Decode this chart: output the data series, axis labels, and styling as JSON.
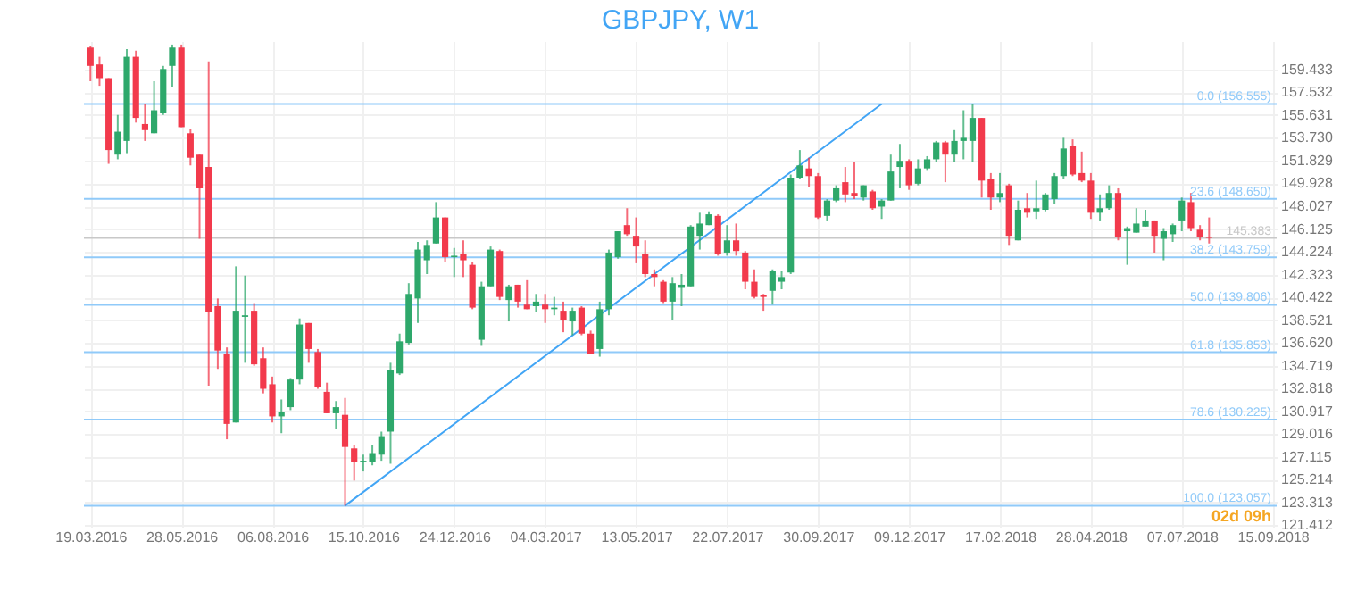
{
  "chart_data": {
    "type": "candlestick",
    "title": "GBPJPY, W1",
    "ylim": [
      121.3,
      161.8
    ],
    "yticks": [
      121.412,
      123.313,
      125.214,
      127.115,
      129.016,
      130.917,
      132.818,
      134.719,
      {
        "value": 136.62,
        "label": "136.620"
      },
      138.521,
      140.422,
      142.323,
      144.224,
      146.125,
      148.027,
      149.928,
      151.829,
      {
        "value": 153.73,
        "label": "153.730"
      },
      155.631,
      157.532,
      159.433
    ],
    "xlim": [
      "2016-03-14",
      "2018-09-18"
    ],
    "xticks": [
      {
        "value": "2016-03-19",
        "label": "19.03.2016"
      },
      {
        "value": "2016-05-28",
        "label": "28.05.2016"
      },
      {
        "value": "2016-08-06",
        "label": "06.08.2016"
      },
      {
        "value": "2016-10-15",
        "label": "15.10.2016"
      },
      {
        "value": "2016-12-24",
        "label": "24.12.2016"
      },
      {
        "value": "2017-03-04",
        "label": "04.03.2017"
      },
      {
        "value": "2017-05-13",
        "label": "13.05.2017"
      },
      {
        "value": "2017-07-22",
        "label": "22.07.2017"
      },
      {
        "value": "2017-09-30",
        "label": "30.09.2017"
      },
      {
        "value": "2017-12-09",
        "label": "09.12.2017"
      },
      {
        "value": "2018-02-17",
        "label": "17.02.2018"
      },
      {
        "value": "2018-04-28",
        "label": "28.04.2018"
      },
      {
        "value": "2018-07-07",
        "label": "07.07.2018"
      },
      {
        "value": "2018-09-15",
        "label": "15.09.2018"
      }
    ],
    "grid": true,
    "series": [
      {
        "type": "line",
        "color": "#42a5f5",
        "x": [
          "2016-10-01",
          "2017-11-18"
        ],
        "values": [
          123.057,
          156.555
        ]
      },
      {
        "color": "#2ea86b",
        "x": [
          "2016-04-09",
          "2016-04-16",
          "2016-05-07",
          "2016-05-14",
          "2016-05-21",
          "2016-07-09",
          "2016-07-16",
          "2016-08-13",
          "2016-08-20",
          "2016-08-27",
          "2016-09-24",
          "2016-10-15",
          "2016-10-22",
          "2016-10-29",
          "2016-11-05",
          "2016-11-12",
          "2016-11-19",
          "2016-11-26",
          "2016-12-03",
          "2016-12-10",
          "2016-12-24",
          "2017-01-14",
          "2017-01-21",
          "2017-02-04",
          "2017-02-25",
          "2017-03-11",
          "2017-03-25",
          "2017-04-15",
          "2017-04-22",
          "2017-04-29",
          "2017-06-10",
          "2017-06-17",
          "2017-06-24",
          "2017-07-01",
          "2017-07-08",
          "2017-07-22",
          "2017-08-26",
          "2017-09-02",
          "2017-09-09",
          "2017-09-16",
          "2017-10-07",
          "2017-10-14",
          "2017-11-04",
          "2017-11-18",
          "2017-11-25",
          "2017-12-02",
          "2017-12-16",
          "2017-12-23",
          "2017-12-30",
          "2018-01-13",
          "2018-01-20",
          "2018-01-27",
          "2018-02-17",
          "2018-03-03",
          "2018-03-17",
          "2018-03-24",
          "2018-03-31",
          "2018-04-07",
          "2018-05-05",
          "2018-05-12",
          "2018-05-26",
          "2018-06-02",
          "2018-06-09",
          "2018-06-23",
          "2018-06-30",
          "2018-07-07"
        ],
        "ohlc": [
          [
            152.33,
            155.64,
            151.94,
            154.24
          ],
          [
            153.47,
            161.13,
            152.45,
            160.49
          ],
          [
            154.11,
            158.45,
            154.11,
            156.03
          ],
          [
            155.77,
            159.73,
            155.64,
            159.47
          ],
          [
            159.73,
            161.51,
            157.94,
            161.26
          ],
          [
            129.99,
            143.01,
            129.99,
            139.31
          ],
          [
            138.8,
            142.24,
            134.97,
            138.93
          ],
          [
            130.5,
            131.91,
            129.1,
            130.89
          ],
          [
            131.27,
            133.7,
            131.02,
            133.57
          ],
          [
            133.57,
            138.67,
            133.18,
            138.16
          ],
          [
            130.76,
            131.78,
            129.48,
            131.27
          ],
          [
            126.68,
            127.31,
            125.91,
            126.8
          ],
          [
            126.68,
            128.08,
            126.42,
            127.44
          ],
          [
            127.31,
            129.23,
            126.8,
            128.85
          ],
          [
            129.23,
            134.97,
            126.55,
            134.33
          ],
          [
            134.08,
            137.4,
            133.95,
            136.76
          ],
          [
            136.63,
            141.61,
            136.5,
            140.71
          ],
          [
            140.33,
            145.05,
            138.29,
            144.41
          ],
          [
            143.52,
            145.18,
            142.37,
            144.8
          ],
          [
            144.92,
            148.37,
            144.92,
            147.09
          ],
          [
            143.78,
            144.54,
            142.12,
            143.9
          ],
          [
            136.89,
            141.73,
            136.38,
            141.35
          ],
          [
            141.35,
            144.67,
            141.35,
            144.41
          ],
          [
            140.2,
            141.48,
            138.42,
            141.35
          ],
          [
            139.69,
            140.71,
            139.18,
            140.07
          ],
          [
            139.44,
            140.46,
            138.93,
            139.57
          ],
          [
            138.42,
            139.57,
            137.27,
            139.31
          ],
          [
            136.12,
            140.07,
            135.48,
            139.44
          ],
          [
            139.44,
            144.41,
            138.93,
            144.16
          ],
          [
            143.78,
            145.94,
            143.65,
            145.94
          ],
          [
            140.07,
            142.12,
            138.54,
            141.61
          ],
          [
            141.22,
            142.37,
            139.69,
            141.48
          ],
          [
            141.35,
            146.45,
            141.35,
            146.33
          ],
          [
            145.56,
            147.48,
            144.41,
            146.58
          ],
          [
            146.45,
            147.6,
            146.45,
            147.35
          ],
          [
            144.16,
            146.45,
            143.9,
            145.18
          ],
          [
            140.97,
            142.76,
            139.82,
            142.63
          ],
          [
            141.73,
            142.63,
            141.1,
            142.12
          ],
          [
            142.5,
            150.67,
            142.37,
            150.41
          ],
          [
            150.41,
            152.71,
            150.28,
            151.43
          ],
          [
            147.22,
            148.62,
            146.84,
            148.5
          ],
          [
            148.5,
            149.77,
            148.37,
            149.52
          ],
          [
            148.75,
            149.77,
            148.5,
            149.77
          ],
          [
            147.99,
            148.62,
            146.97,
            148.5
          ],
          [
            148.5,
            152.33,
            148.5,
            150.92
          ],
          [
            151.3,
            153.22,
            149.52,
            151.81
          ],
          [
            149.9,
            151.94,
            149.77,
            151.18
          ],
          [
            151.18,
            152.2,
            151.05,
            151.94
          ],
          [
            151.94,
            153.47,
            151.69,
            153.35
          ],
          [
            152.33,
            154.37,
            151.69,
            153.47
          ],
          [
            153.47,
            156.03,
            151.94,
            153.73
          ],
          [
            153.47,
            156.54,
            151.69,
            155.39
          ],
          [
            148.75,
            150.79,
            148.37,
            149.13
          ],
          [
            145.18,
            148.5,
            145.18,
            147.73
          ],
          [
            147.6,
            150.16,
            146.97,
            147.86
          ],
          [
            147.73,
            149.13,
            147.6,
            149.01
          ],
          [
            148.62,
            150.79,
            148.24,
            150.54
          ],
          [
            150.54,
            153.73,
            150.28,
            152.84
          ],
          [
            147.48,
            149.01,
            146.84,
            147.86
          ],
          [
            147.86,
            149.77,
            147.73,
            149.13
          ],
          [
            145.94,
            146.33,
            143.14,
            146.2
          ],
          [
            145.82,
            147.86,
            145.82,
            146.58
          ],
          [
            146.33,
            147.73,
            146.33,
            146.84
          ],
          [
            145.31,
            146.2,
            143.52,
            145.94
          ],
          [
            145.69,
            146.58,
            145.05,
            146.45
          ],
          [
            146.84,
            148.75,
            145.94,
            148.5
          ]
        ]
      },
      {
        "color": "#f23a4c",
        "x": [
          "2016-03-19",
          "2016-03-26",
          "2016-04-02",
          "2016-04-23",
          "2016-04-30",
          "2016-05-28",
          "2016-06-04",
          "2016-06-11",
          "2016-06-18",
          "2016-06-25",
          "2016-07-02",
          "2016-07-23",
          "2016-07-30",
          "2016-08-06",
          "2016-09-03",
          "2016-09-10",
          "2016-09-17",
          "2016-10-01",
          "2016-10-08",
          "2016-12-17",
          "2016-12-31",
          "2017-01-07",
          "2017-01-28",
          "2017-02-11",
          "2017-02-18",
          "2017-03-04",
          "2017-03-18",
          "2017-04-01",
          "2017-04-08",
          "2017-05-06",
          "2017-05-13",
          "2017-05-20",
          "2017-05-27",
          "2017-06-03",
          "2017-07-15",
          "2017-07-29",
          "2017-08-05",
          "2017-08-12",
          "2017-08-19",
          "2017-09-23",
          "2017-09-30",
          "2017-10-21",
          "2017-10-28",
          "2017-11-11",
          "2017-12-09",
          "2018-01-06",
          "2018-02-03",
          "2018-02-10",
          "2018-02-24",
          "2018-03-10",
          "2018-04-14",
          "2018-04-21",
          "2018-04-28",
          "2018-05-19",
          "2018-06-16",
          "2018-07-14",
          "2018-07-21",
          "2018-07-28"
        ],
        "ohlc": [
          [
            161.26,
            161.38,
            158.45,
            159.73
          ],
          [
            159.85,
            160.49,
            158.07,
            158.71
          ],
          [
            158.71,
            158.71,
            151.56,
            152.71
          ],
          [
            160.49,
            161.0,
            155.0,
            155.39
          ],
          [
            154.88,
            156.54,
            153.47,
            154.37
          ],
          [
            161.26,
            161.51,
            154.62,
            154.62
          ],
          [
            154.11,
            154.49,
            151.43,
            152.07
          ],
          [
            152.33,
            152.33,
            145.31,
            149.52
          ],
          [
            151.3,
            160.11,
            133.06,
            139.18
          ],
          [
            139.69,
            140.33,
            134.46,
            135.99
          ],
          [
            135.74,
            136.25,
            128.59,
            129.87
          ],
          [
            139.31,
            139.95,
            134.72,
            134.84
          ],
          [
            135.35,
            136.25,
            132.42,
            132.8
          ],
          [
            133.18,
            133.82,
            129.99,
            130.5
          ],
          [
            138.29,
            138.29,
            134.97,
            136.12
          ],
          [
            135.87,
            136.12,
            132.8,
            132.93
          ],
          [
            132.55,
            133.31,
            130.76,
            130.76
          ],
          [
            130.63,
            132.04,
            123.06,
            127.95
          ],
          [
            127.83,
            128.08,
            125.15,
            126.68
          ],
          [
            147.09,
            147.09,
            143.39,
            143.78
          ],
          [
            144.03,
            145.18,
            142.12,
            143.52
          ],
          [
            143.14,
            143.39,
            139.44,
            139.57
          ],
          [
            144.29,
            144.41,
            140.2,
            140.46
          ],
          [
            141.48,
            141.48,
            139.57,
            140.07
          ],
          [
            139.82,
            141.86,
            139.44,
            139.44
          ],
          [
            139.82,
            140.71,
            138.29,
            139.44
          ],
          [
            139.31,
            140.07,
            137.52,
            138.54
          ],
          [
            139.57,
            139.69,
            137.27,
            137.4
          ],
          [
            137.4,
            137.65,
            135.74,
            135.74
          ],
          [
            146.45,
            147.86,
            145.56,
            145.69
          ],
          [
            145.56,
            147.09,
            143.27,
            144.67
          ],
          [
            144.03,
            145.18,
            142.12,
            142.37
          ],
          [
            142.37,
            142.76,
            141.35,
            142.12
          ],
          [
            141.73,
            141.86,
            139.95,
            140.07
          ],
          [
            147.22,
            147.35,
            143.9,
            144.03
          ],
          [
            145.18,
            146.58,
            143.9,
            144.29
          ],
          [
            144.16,
            144.29,
            141.1,
            141.73
          ],
          [
            141.73,
            142.76,
            140.33,
            140.46
          ],
          [
            140.59,
            140.71,
            139.31,
            140.46
          ],
          [
            151.18,
            152.07,
            149.65,
            150.54
          ],
          [
            150.54,
            150.79,
            146.97,
            147.09
          ],
          [
            150.03,
            151.3,
            148.37,
            149.01
          ],
          [
            149.13,
            151.69,
            148.62,
            148.88
          ],
          [
            149.26,
            149.39,
            147.73,
            147.86
          ],
          [
            151.81,
            151.94,
            149.39,
            149.77
          ],
          [
            153.35,
            153.47,
            150.03,
            152.33
          ],
          [
            155.39,
            155.39,
            148.75,
            150.16
          ],
          [
            150.28,
            150.79,
            147.73,
            148.75
          ],
          [
            149.77,
            149.9,
            144.8,
            145.56
          ],
          [
            147.86,
            149.13,
            147.09,
            147.48
          ],
          [
            153.09,
            153.6,
            150.54,
            150.67
          ],
          [
            150.79,
            152.58,
            150.03,
            150.16
          ],
          [
            150.16,
            150.79,
            146.97,
            147.48
          ],
          [
            149.13,
            149.52,
            145.18,
            145.43
          ],
          [
            146.84,
            146.84,
            144.16,
            145.56
          ],
          [
            148.37,
            149.13,
            145.94,
            146.2
          ],
          [
            146.07,
            146.45,
            145.18,
            145.43
          ],
          [
            145.43,
            147.09,
            144.92,
            145.38
          ]
        ]
      }
    ],
    "ref_lines": [
      {
        "axis": "y",
        "value": 156.555,
        "label": "0.0 (156.555)",
        "color": "#90caf9"
      },
      {
        "axis": "y",
        "value": 148.65,
        "label": "23.6 (148.650)",
        "color": "#90caf9"
      },
      {
        "axis": "y",
        "value": 143.759,
        "label": "38.2 (143.759)",
        "color": "#90caf9"
      },
      {
        "axis": "y",
        "value": 139.806,
        "label": "50.0 (139.806)",
        "color": "#90caf9"
      },
      {
        "axis": "y",
        "value": 135.853,
        "label": "61.8 (135.853)",
        "color": "#90caf9"
      },
      {
        "axis": "y",
        "value": 130.225,
        "label": "78.6 (130.225)",
        "color": "#90caf9"
      },
      {
        "axis": "y",
        "value": 123.057,
        "label": "100.0 (123.057)",
        "color": "#90caf9"
      },
      {
        "axis": "y",
        "value": 145.383,
        "label": "145.383",
        "color": "#c8c8c8"
      }
    ],
    "annotations": [
      "02d 09h"
    ]
  }
}
